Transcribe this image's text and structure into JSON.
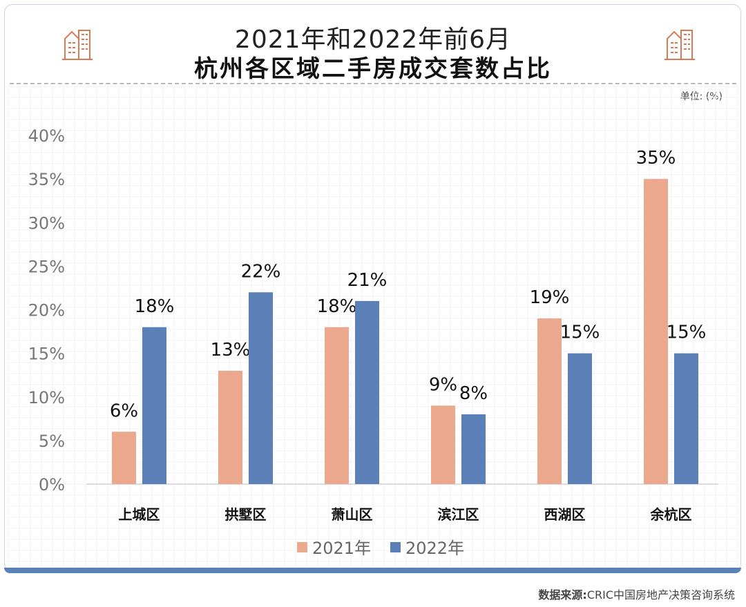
{
  "header": {
    "title_line1": "2021年和2022年前6月",
    "title_line2": "杭州各区域二手房成交套数占比",
    "unit_label": "单位: (%)"
  },
  "colors": {
    "series_2021": "#eba88c",
    "series_2022": "#5b80b8",
    "accent": "#d77a54"
  },
  "icons": [
    "building-icon-left",
    "building-icon-right"
  ],
  "chart_data": {
    "type": "bar",
    "title": "2021年和2022年前6月 杭州各区域二手房成交套数占比",
    "categories": [
      "上城区",
      "拱墅区",
      "萧山区",
      "滨江区",
      "西湖区",
      "余杭区"
    ],
    "series": [
      {
        "name": "2021年",
        "values": [
          6,
          13,
          18,
          9,
          19,
          35
        ],
        "labels": [
          "6%",
          "13%",
          "18%",
          "9%",
          "19%",
          "35%"
        ]
      },
      {
        "name": "2022年",
        "values": [
          18,
          22,
          21,
          8,
          15,
          15
        ],
        "labels": [
          "18%",
          "22%",
          "21%",
          "8%",
          "15%",
          "15%"
        ]
      }
    ],
    "ylim": [
      0,
      40
    ],
    "yticks": [
      "0%",
      "5%",
      "10%",
      "15%",
      "20%",
      "25%",
      "30%",
      "35%",
      "40%"
    ],
    "xlabel": "",
    "ylabel": "",
    "legend": "bottom-center",
    "grid": false
  },
  "footer": {
    "source_label": "数据来源:",
    "source_text": "CRIC中国房地产决策咨询系统"
  }
}
